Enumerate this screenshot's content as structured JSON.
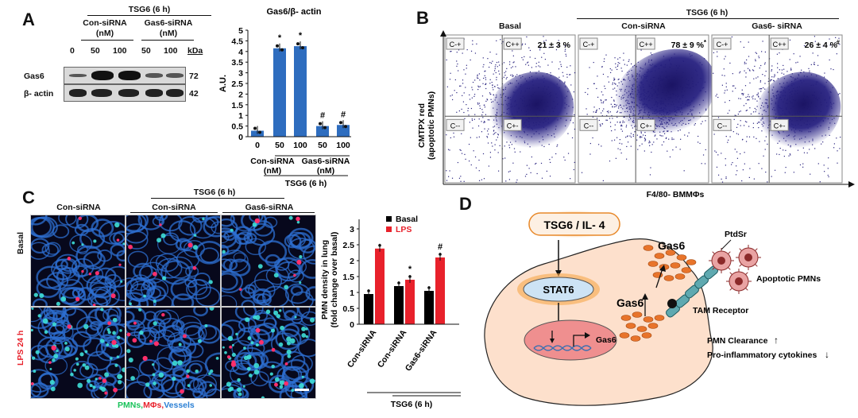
{
  "panels": {
    "a": "A",
    "b": "B",
    "c": "C",
    "d": "D"
  },
  "a": {
    "treatment": "TSG6 (6 h)",
    "con": "Con-siRNA",
    "gas": "Gas6-siRNA",
    "unit": "(nM)",
    "doses": [
      "0",
      "50",
      "100",
      "50",
      "100"
    ],
    "kda": "kDa",
    "rows": [
      {
        "name": "Gas6",
        "kda": "72"
      },
      {
        "name": "β- actin",
        "kda": "42"
      }
    ]
  },
  "b": {
    "treatment": "TSG6 (6 h)",
    "titles": [
      "Basal",
      "Con-siRNA",
      "Gas6- siRNA"
    ],
    "values": [
      "21 ± 3 %",
      "78 ± 9 %",
      "26 ± 4 %"
    ],
    "marks": [
      "",
      "*",
      "#"
    ],
    "quad": [
      "C-+",
      "C++",
      "C--",
      "C+-"
    ],
    "ylabel1": "CMTPX red",
    "ylabel2": "(apoptotic PMNs)",
    "xlabel": "F4/80- BMMΦs"
  },
  "c": {
    "treatment": "TSG6 (6 h)",
    "cols": [
      "Con-siRNA",
      "Con-siRNA",
      "Gas6-siRNA"
    ],
    "rows": [
      "Basal",
      "LPS 24 h"
    ],
    "legend": [
      {
        "t": "PMNs,",
        "c": "#19c25a"
      },
      {
        "t": "MΦs,",
        "c": "#e8212b"
      },
      {
        "t": "Vessels",
        "c": "#2a7fd4"
      }
    ]
  },
  "chart_data": [
    {
      "type": "bar",
      "title": "Gas6/β- actin",
      "ylabel": "A.U.",
      "ylim": [
        0,
        5
      ],
      "yticks": [
        "0",
        "0.5",
        "1",
        "1.5",
        "2",
        "2.5",
        "3",
        "3.5",
        "4",
        "4.5",
        "5"
      ],
      "categories": [
        "0",
        "50",
        "100",
        "50",
        "100"
      ],
      "values": [
        0.28,
        4.15,
        4.25,
        0.5,
        0.55
      ],
      "marks": [
        "",
        "*",
        "*",
        "#",
        "#"
      ],
      "group_labels": [
        {
          "l1": "Con-siRNA",
          "l2": "(nM)"
        },
        {
          "l1": "Gas6-siRNA",
          "l2": "(nM)"
        }
      ],
      "footer": "TSG6 (6 h)",
      "color": "#2e6dbf"
    },
    {
      "type": "bar",
      "ylabel1": "PMN density in lung",
      "ylabel2": "(fold change over basal)",
      "ylim": [
        0,
        3
      ],
      "yticks": [
        "0",
        "0.5",
        "1",
        "1.5",
        "2",
        "2.5",
        "3"
      ],
      "categories": [
        "Con-siRNA",
        "Con-siRNA",
        "Gas6-siRNA"
      ],
      "series": [
        {
          "name": "Basal",
          "color": "#000000",
          "values": [
            0.95,
            1.2,
            1.05
          ]
        },
        {
          "name": "LPS",
          "color": "#e8212b",
          "values": [
            2.38,
            1.4,
            2.1
          ]
        }
      ],
      "marks": [
        "",
        "*",
        "#"
      ],
      "footer": "TSG6 (6 h)"
    }
  ],
  "d": {
    "inducer": "TSG6 / IL- 4",
    "stat": "STAT6",
    "gene": "Gas6",
    "gas6_top": "Gas6",
    "gas6_mid": "Gas6",
    "ptdsr": "PtdSr",
    "apoptotic": "Apoptotic PMNs",
    "receptor": "TAM Receptor",
    "clearance": "PMN Clearance",
    "cytokines": "Pro-inflammatory  cytokines"
  }
}
